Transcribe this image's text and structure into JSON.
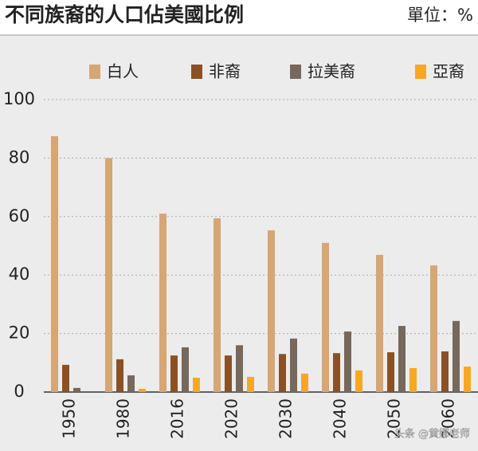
{
  "chart_data": {
    "type": "bar",
    "title": "不同族裔的人口佔美國比例",
    "subtitle": "單位：%",
    "categories": [
      "1950",
      "1980",
      "2016",
      "2020",
      "2030",
      "2040",
      "2050",
      "2060"
    ],
    "series": [
      {
        "name": "白人",
        "color": "#d6a674",
        "values": [
          87.5,
          80,
          61,
          59.4,
          55.3,
          51,
          46.9,
          43.3
        ]
      },
      {
        "name": "非裔",
        "color": "#8b5124",
        "values": [
          9.3,
          11.2,
          12.5,
          12.5,
          13,
          13.3,
          13.6,
          13.9
        ]
      },
      {
        "name": "拉美裔",
        "color": "#76685c",
        "values": [
          1.4,
          5.7,
          15.3,
          16,
          18.3,
          20.7,
          22.6,
          24.3
        ]
      },
      {
        "name": "亞裔",
        "color": "#f7a823",
        "values": [
          0,
          1.1,
          4.9,
          5.2,
          6.3,
          7.4,
          8.2,
          8.7
        ]
      }
    ],
    "ylim": [
      0,
      100
    ],
    "yticks": [
      0,
      20,
      40,
      60,
      80,
      100
    ],
    "grid": true,
    "watermark": "头条 @黄娜老师"
  }
}
